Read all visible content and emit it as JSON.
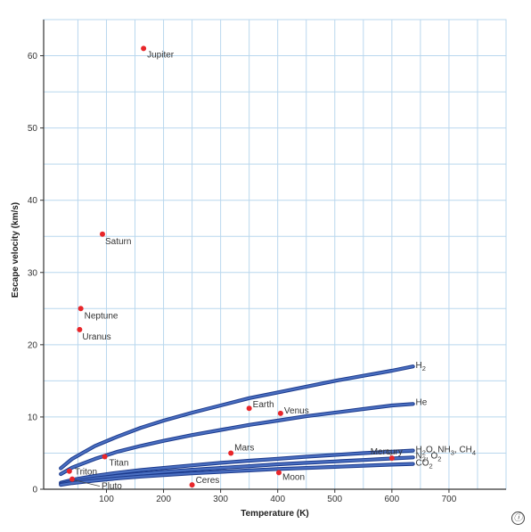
{
  "chart_data": {
    "type": "scatter",
    "title": "",
    "xlabel": "Temperature (K)",
    "ylabel": "Escape velocity (km/s)",
    "xlim": [
      -10,
      800
    ],
    "ylim": [
      0,
      65
    ],
    "x_ticks": [
      100,
      200,
      300,
      400,
      500,
      600,
      700
    ],
    "y_ticks": [
      0,
      10,
      20,
      30,
      40,
      50,
      60
    ],
    "grid": true,
    "points": [
      {
        "label": "Jupiter",
        "x": 165,
        "y": 61
      },
      {
        "label": "Saturn",
        "x": 93,
        "y": 35.3
      },
      {
        "label": "Neptune",
        "x": 55,
        "y": 25
      },
      {
        "label": "Uranus",
        "x": 53,
        "y": 22.1
      },
      {
        "label": "Earth",
        "x": 350,
        "y": 11.2
      },
      {
        "label": "Venus",
        "x": 405,
        "y": 10.5
      },
      {
        "label": "Mars",
        "x": 318,
        "y": 5
      },
      {
        "label": "Mercury",
        "x": 600,
        "y": 4.3
      },
      {
        "label": "Titan",
        "x": 97,
        "y": 4.5
      },
      {
        "label": "Triton",
        "x": 35,
        "y": 2.5
      },
      {
        "label": "Pluto",
        "x": 40,
        "y": 1.4
      },
      {
        "label": "Moon",
        "x": 402,
        "y": 2.3
      },
      {
        "label": "Ceres",
        "x": 250,
        "y": 0.6
      }
    ],
    "curves": [
      {
        "label": "H2",
        "sub": "2",
        "base": "H",
        "x": [
          20,
          40,
          80,
          120,
          160,
          200,
          250,
          300,
          350,
          400,
          450,
          500,
          550,
          600,
          637
        ],
        "y": [
          2.9,
          4.2,
          6.0,
          7.3,
          8.5,
          9.5,
          10.6,
          11.6,
          12.6,
          13.4,
          14.2,
          15.0,
          15.7,
          16.4,
          17.0
        ]
      },
      {
        "label": "He",
        "x": [
          20,
          40,
          80,
          120,
          160,
          200,
          250,
          300,
          350,
          400,
          450,
          500,
          550,
          600,
          637
        ],
        "y": [
          2.1,
          3.0,
          4.2,
          5.2,
          6.0,
          6.7,
          7.5,
          8.2,
          8.9,
          9.5,
          10.1,
          10.6,
          11.1,
          11.6,
          11.8
        ]
      },
      {
        "label": "H2O, NH3, CH4",
        "x": [
          20,
          40,
          80,
          120,
          160,
          200,
          250,
          300,
          350,
          400,
          450,
          500,
          550,
          600,
          637
        ],
        "y": [
          0.9,
          1.3,
          1.85,
          2.3,
          2.65,
          2.95,
          3.3,
          3.65,
          3.95,
          4.2,
          4.5,
          4.75,
          5.0,
          5.2,
          5.35
        ]
      },
      {
        "label": "N2, O2",
        "x": [
          20,
          40,
          80,
          120,
          160,
          200,
          250,
          300,
          350,
          400,
          450,
          500,
          550,
          600,
          637
        ],
        "y": [
          0.75,
          1.05,
          1.5,
          1.85,
          2.15,
          2.4,
          2.7,
          2.95,
          3.2,
          3.45,
          3.65,
          3.85,
          4.05,
          4.25,
          4.4
        ]
      },
      {
        "label": "CO2",
        "x": [
          20,
          40,
          80,
          120,
          160,
          200,
          250,
          300,
          350,
          400,
          450,
          500,
          550,
          600,
          637
        ],
        "y": [
          0.6,
          0.85,
          1.2,
          1.5,
          1.75,
          1.95,
          2.2,
          2.4,
          2.6,
          2.8,
          2.95,
          3.1,
          3.25,
          3.4,
          3.5
        ]
      }
    ],
    "curve_labels": [
      {
        "base": "H",
        "sub": "2",
        "rest": ""
      },
      {
        "base": "He",
        "sub": "",
        "rest": ""
      },
      {
        "base": "H",
        "sub": "2",
        "rest": "O, NH",
        "sub2": "3",
        "rest2": ", CH",
        "sub3": "4"
      },
      {
        "base": "N",
        "sub": "2",
        "rest": ", O",
        "sub2": "2"
      },
      {
        "base": "CO",
        "sub": "2",
        "rest": ""
      }
    ],
    "colors": {
      "points": "#e8262a",
      "curve": "#4a6fc1",
      "curve_edge": "#1c3a8c",
      "grid": "#b9d7ee"
    }
  },
  "ui": {
    "info_icon": "ⓘ"
  }
}
